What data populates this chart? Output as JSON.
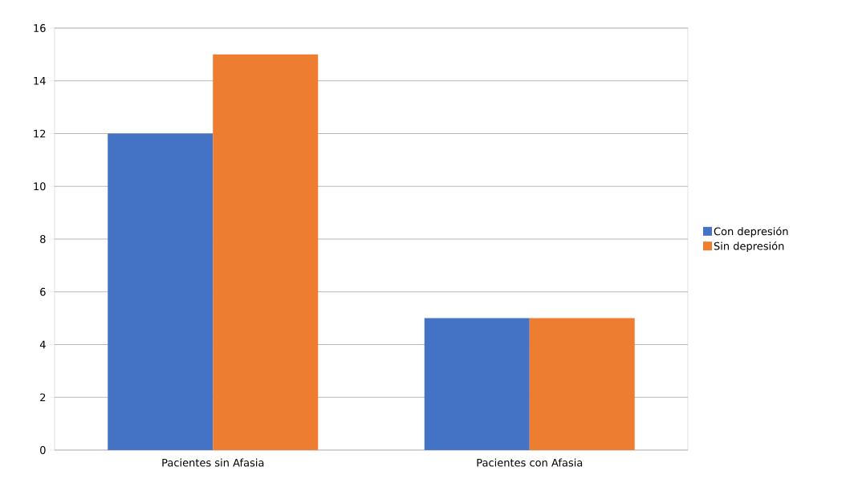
{
  "chart_data": {
    "type": "bar",
    "categories": [
      "Pacientes sin Afasia",
      "Pacientes con Afasia"
    ],
    "series": [
      {
        "name": "Con depresión",
        "color": "#4472c4",
        "values": [
          12,
          5
        ]
      },
      {
        "name": "Sin depresión",
        "color": "#ed7d31",
        "values": [
          15,
          5
        ]
      }
    ],
    "ylim": [
      0,
      16
    ],
    "yticks": [
      0,
      2,
      4,
      6,
      8,
      10,
      12,
      14,
      16
    ],
    "grid": "y",
    "legend": "right"
  }
}
